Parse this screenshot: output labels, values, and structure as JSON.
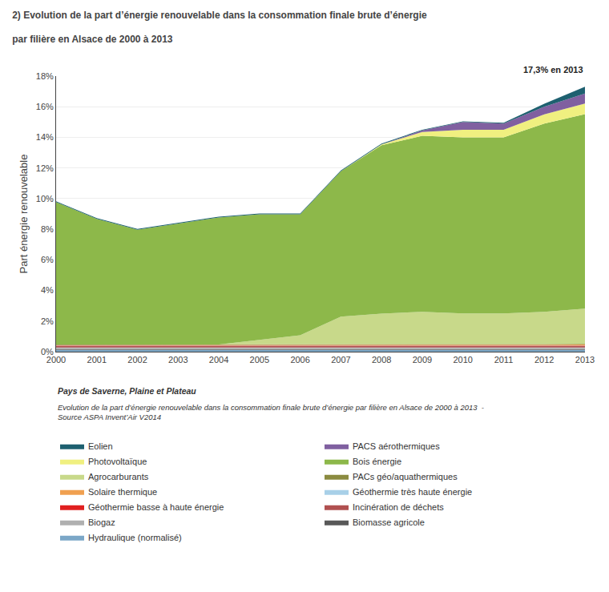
{
  "chart_data": {
    "type": "area",
    "stacked": true,
    "title": "2) Evolution de la part d’énergie renouvelable dans la consommation finale brute d’énergie",
    "subtitle": "par filière en Alsace de 2000 à 2013",
    "ylabel": "Part énergie renouvelable",
    "annotation": "17,3% en 2013",
    "footer": [
      "Pays de Saverne, Plaine et Plateau",
      "Evolution de la part d’énergie renouvelable dans la consommation finale brute d’énergie par filière en Alsace de 2000 à 2013  -\nSource ASPA Invent’Air V2014"
    ],
    "x": [
      2000,
      2001,
      2002,
      2003,
      2004,
      2005,
      2006,
      2007,
      2008,
      2009,
      2010,
      2011,
      2012,
      2013
    ],
    "xlim": [
      2000,
      2013
    ],
    "xticks": [
      2000,
      2001,
      2002,
      2003,
      2004,
      2005,
      2006,
      2007,
      2008,
      2009,
      2010,
      2011,
      2012,
      2013
    ],
    "ylim": [
      0,
      18
    ],
    "yticks": [
      {
        "value": 0,
        "label": "0%"
      },
      {
        "value": 2,
        "label": "2%"
      },
      {
        "value": 4,
        "label": "4%"
      },
      {
        "value": 6,
        "label": "6%"
      },
      {
        "value": 8,
        "label": "8%"
      },
      {
        "value": 10,
        "label": "10%"
      },
      {
        "value": 12,
        "label": "12%"
      },
      {
        "value": 14,
        "label": "14%"
      },
      {
        "value": 16,
        "label": "16%"
      },
      {
        "value": 18,
        "label": "18%"
      }
    ],
    "grid": true,
    "series": [
      {
        "name": "Hydraulique (normalisé)",
        "color": "#7ba7c7",
        "values": [
          0.12,
          0.12,
          0.12,
          0.12,
          0.12,
          0.12,
          0.12,
          0.12,
          0.12,
          0.12,
          0.12,
          0.12,
          0.12,
          0.12
        ]
      },
      {
        "name": "Biomasse agricole",
        "color": "#595959",
        "values": [
          0.05,
          0.05,
          0.05,
          0.05,
          0.05,
          0.05,
          0.05,
          0.05,
          0.05,
          0.05,
          0.05,
          0.05,
          0.05,
          0.05
        ]
      },
      {
        "name": "Biogaz",
        "color": "#b0b0b0",
        "values": [
          0.1,
          0.1,
          0.1,
          0.1,
          0.1,
          0.1,
          0.1,
          0.1,
          0.1,
          0.1,
          0.1,
          0.1,
          0.1,
          0.1
        ]
      },
      {
        "name": "Incinération de déchets",
        "color": "#b05050",
        "values": [
          0.1,
          0.1,
          0.1,
          0.1,
          0.1,
          0.1,
          0.1,
          0.1,
          0.1,
          0.1,
          0.1,
          0.1,
          0.1,
          0.1
        ]
      },
      {
        "name": "Géothermie basse à haute énergie",
        "color": "#e02020",
        "values": [
          0.02,
          0.02,
          0.02,
          0.02,
          0.02,
          0.02,
          0.02,
          0.02,
          0.02,
          0.02,
          0.02,
          0.02,
          0.02,
          0.02
        ]
      },
      {
        "name": "Géothermie très haute énergie",
        "color": "#a8d0e8",
        "values": [
          0.02,
          0.02,
          0.02,
          0.02,
          0.02,
          0.02,
          0.02,
          0.02,
          0.02,
          0.02,
          0.02,
          0.02,
          0.02,
          0.02
        ]
      },
      {
        "name": "Solaire thermique",
        "color": "#f0a050",
        "values": [
          0.02,
          0.02,
          0.02,
          0.02,
          0.02,
          0.02,
          0.02,
          0.04,
          0.04,
          0.05,
          0.05,
          0.05,
          0.05,
          0.06
        ]
      },
      {
        "name": "PACs géo/aquathermiques",
        "color": "#8b8b40",
        "values": [
          0.04,
          0.04,
          0.04,
          0.04,
          0.04,
          0.04,
          0.04,
          0.04,
          0.04,
          0.04,
          0.04,
          0.04,
          0.04,
          0.04
        ]
      },
      {
        "name": "Agrocarburants",
        "color": "#c8d98a",
        "values": [
          0.0,
          0.0,
          0.0,
          0.0,
          0.0,
          0.3,
          0.6,
          1.8,
          2.0,
          2.1,
          2.0,
          2.0,
          2.1,
          2.3
        ]
      },
      {
        "name": "Bois énergie",
        "color": "#8db84a",
        "values": [
          9.3,
          8.2,
          7.5,
          7.9,
          8.3,
          8.2,
          7.9,
          9.5,
          11.0,
          11.5,
          11.5,
          11.5,
          12.3,
          12.7
        ]
      },
      {
        "name": "Photovoltaïque",
        "color": "#f0f080",
        "values": [
          0.0,
          0.0,
          0.0,
          0.0,
          0.0,
          0.0,
          0.0,
          0.0,
          0.05,
          0.25,
          0.5,
          0.5,
          0.6,
          0.7
        ]
      },
      {
        "name": "PACS aérothermiques",
        "color": "#8060a0",
        "values": [
          0.0,
          0.0,
          0.0,
          0.0,
          0.0,
          0.0,
          0.0,
          0.0,
          0.0,
          0.1,
          0.5,
          0.4,
          0.5,
          0.65
        ]
      },
      {
        "name": "Eolien",
        "color": "#1e6070",
        "values": [
          0.05,
          0.05,
          0.05,
          0.05,
          0.05,
          0.05,
          0.05,
          0.05,
          0.05,
          0.05,
          0.05,
          0.05,
          0.2,
          0.45
        ]
      }
    ]
  }
}
